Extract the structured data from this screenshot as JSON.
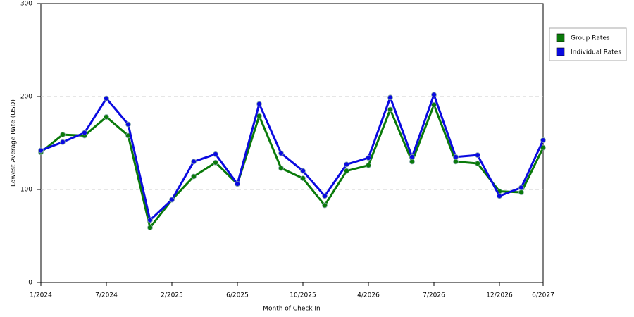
{
  "chart_data": {
    "type": "line",
    "x_label": "Month of Check In",
    "y_label": "Lowest Average Rate (USD)",
    "categories": [
      "1/2024",
      null,
      null,
      "7/2024",
      null,
      null,
      "2/2025",
      null,
      null,
      "6/2025",
      null,
      null,
      "10/2025",
      null,
      null,
      "4/2026",
      null,
      null,
      "7/2026",
      null,
      null,
      "12/2026",
      null,
      "6/2027"
    ],
    "series": [
      {
        "name": "Group Rates",
        "color": "#0a7a0a",
        "values": [
          140,
          159,
          158,
          178,
          158,
          59,
          89,
          114,
          129,
          106,
          179,
          123,
          112,
          83,
          120,
          126,
          186,
          130,
          191,
          130,
          128,
          98,
          97,
          145
        ]
      },
      {
        "name": "Individual Rates",
        "color": "#0a0ae0",
        "values": [
          142,
          151,
          161,
          198,
          170,
          67,
          89,
          130,
          138,
          106,
          192,
          139,
          120,
          93,
          127,
          134,
          199,
          135,
          202,
          135,
          137,
          93,
          102,
          153
        ]
      }
    ],
    "ylim": [
      0,
      300
    ],
    "yticks": [
      0,
      100,
      200,
      300
    ],
    "grid": true,
    "legend": "right"
  }
}
